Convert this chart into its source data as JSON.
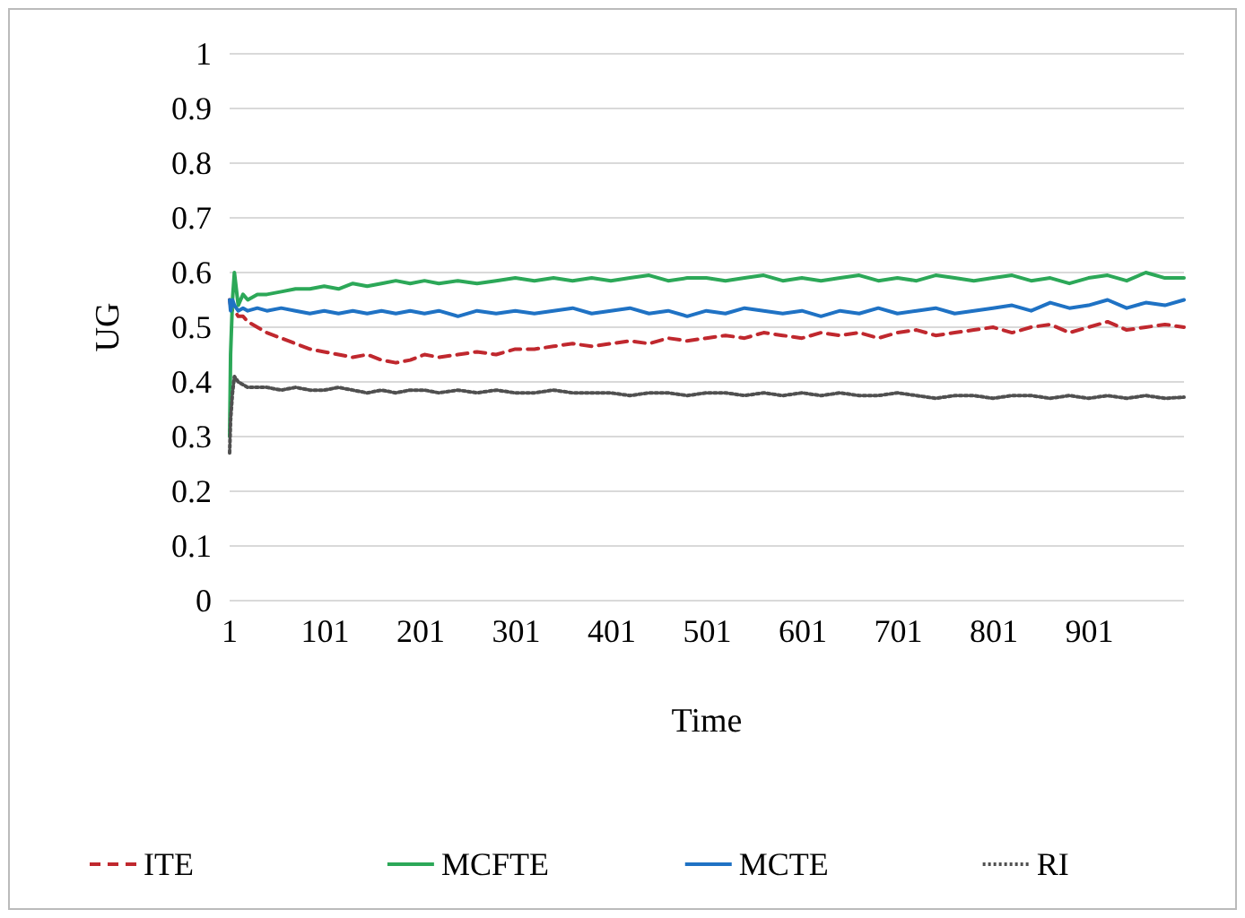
{
  "chart_data": {
    "type": "line",
    "xlabel": "Time",
    "ylabel": "UG",
    "xlim": [
      1,
      1000
    ],
    "xticks": [
      1,
      101,
      201,
      301,
      401,
      501,
      601,
      701,
      801,
      901
    ],
    "ylim": [
      0,
      1
    ],
    "yticks": [
      0,
      0.1,
      0.2,
      0.3,
      0.4,
      0.5,
      0.6,
      0.7,
      0.8,
      0.9,
      1
    ],
    "grid": "y",
    "legend": "bottom",
    "x": [
      1,
      2,
      4,
      6,
      10,
      15,
      20,
      30,
      40,
      55,
      70,
      85,
      100,
      115,
      130,
      145,
      160,
      175,
      190,
      205,
      220,
      240,
      260,
      280,
      300,
      320,
      340,
      360,
      380,
      400,
      420,
      440,
      460,
      480,
      500,
      520,
      540,
      560,
      580,
      600,
      620,
      640,
      660,
      680,
      700,
      720,
      740,
      760,
      780,
      800,
      820,
      840,
      860,
      880,
      900,
      920,
      940,
      960,
      980,
      1000
    ],
    "series": [
      {
        "name": "ITE",
        "color": "#c0282e",
        "line_style": "dashed",
        "values": [
          0.55,
          0.54,
          0.53,
          0.53,
          0.52,
          0.52,
          0.51,
          0.5,
          0.49,
          0.48,
          0.47,
          0.46,
          0.455,
          0.45,
          0.445,
          0.45,
          0.44,
          0.435,
          0.44,
          0.45,
          0.445,
          0.45,
          0.455,
          0.45,
          0.46,
          0.46,
          0.465,
          0.47,
          0.465,
          0.47,
          0.475,
          0.47,
          0.48,
          0.475,
          0.48,
          0.485,
          0.48,
          0.49,
          0.485,
          0.48,
          0.49,
          0.485,
          0.49,
          0.48,
          0.49,
          0.495,
          0.485,
          0.49,
          0.495,
          0.5,
          0.49,
          0.5,
          0.505,
          0.49,
          0.5,
          0.51,
          0.495,
          0.5,
          0.505,
          0.5
        ]
      },
      {
        "name": "MCFTE",
        "color": "#2ca858",
        "line_style": "solid",
        "values": [
          0.3,
          0.45,
          0.55,
          0.6,
          0.54,
          0.56,
          0.55,
          0.56,
          0.56,
          0.565,
          0.57,
          0.57,
          0.575,
          0.57,
          0.58,
          0.575,
          0.58,
          0.585,
          0.58,
          0.585,
          0.58,
          0.585,
          0.58,
          0.585,
          0.59,
          0.585,
          0.59,
          0.585,
          0.59,
          0.585,
          0.59,
          0.595,
          0.585,
          0.59,
          0.59,
          0.585,
          0.59,
          0.595,
          0.585,
          0.59,
          0.585,
          0.59,
          0.595,
          0.585,
          0.59,
          0.585,
          0.595,
          0.59,
          0.585,
          0.59,
          0.595,
          0.585,
          0.59,
          0.58,
          0.59,
          0.595,
          0.585,
          0.6,
          0.59,
          0.59
        ]
      },
      {
        "name": "MCTE",
        "color": "#1f72c4",
        "line_style": "solid",
        "values": [
          0.55,
          0.53,
          0.55,
          0.54,
          0.53,
          0.535,
          0.53,
          0.535,
          0.53,
          0.535,
          0.53,
          0.525,
          0.53,
          0.525,
          0.53,
          0.525,
          0.53,
          0.525,
          0.53,
          0.525,
          0.53,
          0.52,
          0.53,
          0.525,
          0.53,
          0.525,
          0.53,
          0.535,
          0.525,
          0.53,
          0.535,
          0.525,
          0.53,
          0.52,
          0.53,
          0.525,
          0.535,
          0.53,
          0.525,
          0.53,
          0.52,
          0.53,
          0.525,
          0.535,
          0.525,
          0.53,
          0.535,
          0.525,
          0.53,
          0.535,
          0.54,
          0.53,
          0.545,
          0.535,
          0.54,
          0.55,
          0.535,
          0.545,
          0.54,
          0.55
        ]
      },
      {
        "name": "RI",
        "color": "#505050",
        "line_style": "dotted",
        "values": [
          0.27,
          0.33,
          0.38,
          0.41,
          0.4,
          0.395,
          0.39,
          0.39,
          0.39,
          0.385,
          0.39,
          0.385,
          0.385,
          0.39,
          0.385,
          0.38,
          0.385,
          0.38,
          0.385,
          0.385,
          0.38,
          0.385,
          0.38,
          0.385,
          0.38,
          0.38,
          0.385,
          0.38,
          0.38,
          0.38,
          0.375,
          0.38,
          0.38,
          0.375,
          0.38,
          0.38,
          0.375,
          0.38,
          0.375,
          0.38,
          0.375,
          0.38,
          0.375,
          0.375,
          0.38,
          0.375,
          0.37,
          0.375,
          0.375,
          0.37,
          0.375,
          0.375,
          0.37,
          0.375,
          0.37,
          0.375,
          0.37,
          0.375,
          0.37,
          0.372
        ]
      }
    ]
  }
}
